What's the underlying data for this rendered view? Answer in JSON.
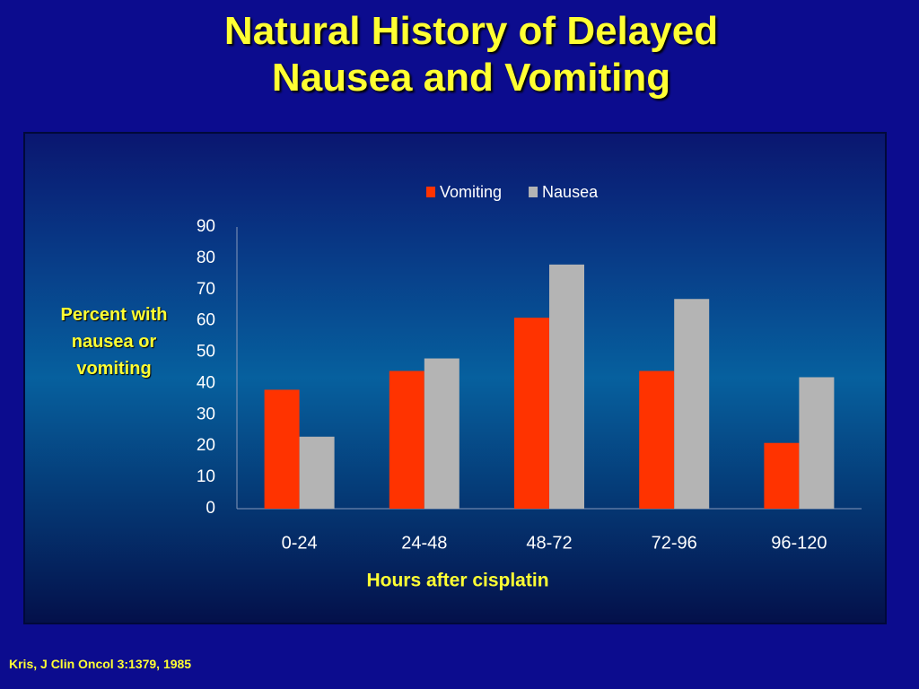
{
  "chart_data": {
    "type": "bar",
    "title": [
      "Natural History of Delayed",
      "Nausea and Vomiting"
    ],
    "x_label": "Hours after cisplatin",
    "y_label": "Percent with nausea or vomiting",
    "categories": [
      "0-24",
      "24-48",
      "48-72",
      "72-96",
      "96-120"
    ],
    "series": [
      {
        "name": "Vomiting",
        "color": "#ff3300",
        "values": [
          38,
          44,
          61,
          44,
          21
        ]
      },
      {
        "name": "Nausea",
        "color": "#b4b4b4",
        "values": [
          23,
          48,
          78,
          67,
          42
        ]
      }
    ],
    "ylim": [
      0,
      90
    ],
    "yticks": [
      0,
      10,
      20,
      30,
      40,
      50,
      60,
      70,
      80,
      90
    ],
    "grid": false,
    "legend": "top",
    "source": "Kris, J Clin Oncol 3:1379, 1985"
  }
}
